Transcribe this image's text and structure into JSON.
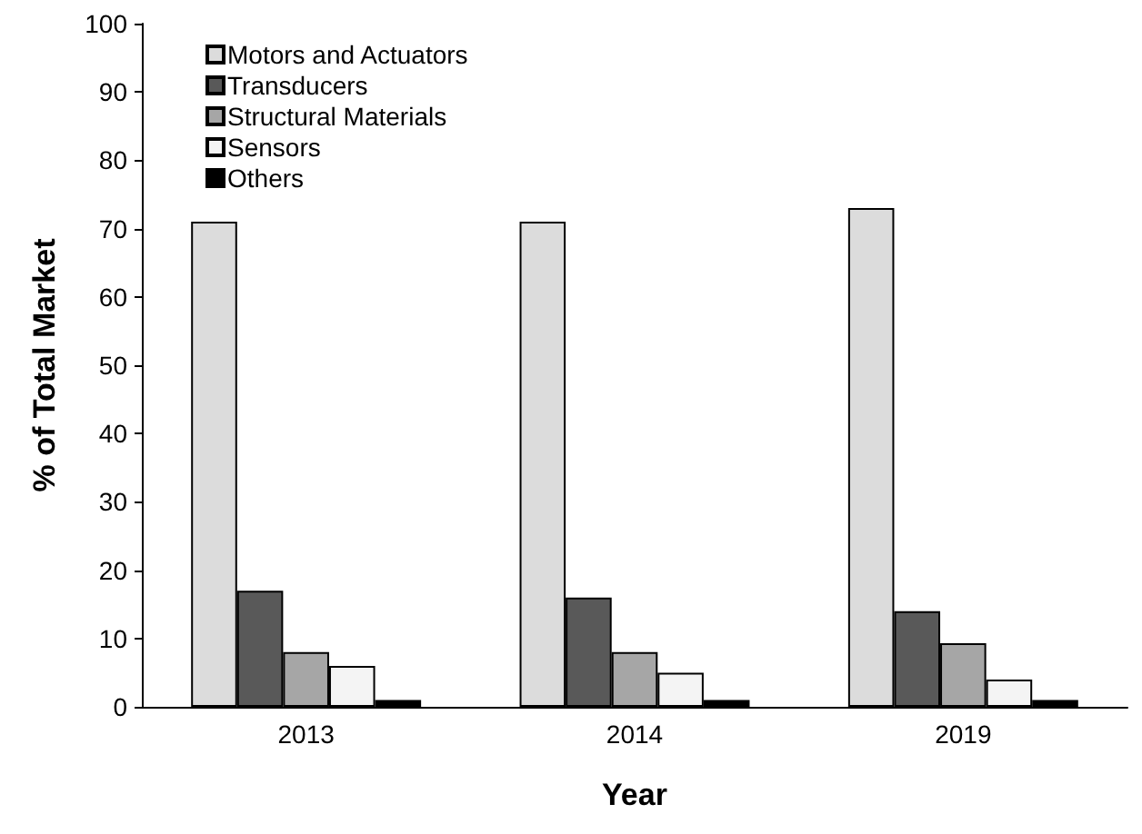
{
  "chart_data": {
    "type": "bar",
    "xlabel": "Year",
    "ylabel": "% of Total Market",
    "categories": [
      "2013",
      "2014",
      "2019"
    ],
    "series": [
      {
        "name": "Motors and Actuators",
        "color": "#dcdcdc",
        "values": [
          71,
          71,
          73
        ]
      },
      {
        "name": "Transducers",
        "color": "#595959",
        "values": [
          17,
          16,
          14
        ]
      },
      {
        "name": "Structural Materials",
        "color": "#a6a6a6",
        "values": [
          8,
          8,
          9.3
        ]
      },
      {
        "name": "Sensors",
        "color": "#f4f4f4",
        "values": [
          6,
          5,
          4
        ]
      },
      {
        "name": "Others",
        "color": "#000000",
        "values": [
          1,
          1,
          1
        ]
      }
    ],
    "ylim": [
      0,
      100
    ],
    "yticks": [
      0,
      10,
      20,
      30,
      40,
      50,
      60,
      70,
      80,
      90,
      100
    ],
    "grid": false,
    "legend": "top left"
  }
}
